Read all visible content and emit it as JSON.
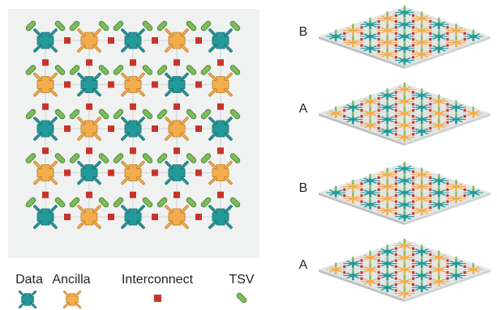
{
  "colors": {
    "data": "#23999a",
    "data_stroke": "#17696b",
    "ancilla": "#f4ad4d",
    "ancilla_stroke": "#b87a23",
    "interconnect": "#c8342b",
    "tsv": "#7cbd59",
    "tsv_stroke": "#3f7a2c",
    "panel": "#f0f2f2",
    "layer_top": "#e3e5e5",
    "layer_side": "#bdc0c0"
  },
  "grid": {
    "rows": 5,
    "cols": 5,
    "pattern": [
      [
        "data",
        "ancilla",
        "data",
        "ancilla",
        "data"
      ],
      [
        "ancilla",
        "data",
        "ancilla",
        "data",
        "ancilla"
      ],
      [
        "data",
        "ancilla",
        "data",
        "ancilla",
        "data"
      ],
      [
        "ancilla",
        "data",
        "ancilla",
        "data",
        "ancilla"
      ],
      [
        "data",
        "ancilla",
        "data",
        "ancilla",
        "data"
      ]
    ]
  },
  "legend": {
    "data": "Data",
    "ancilla": "Ancilla",
    "interconnect": "Interconnect",
    "tsv": "TSV",
    "data_icon": "data-qubit-icon",
    "ancilla_icon": "ancilla-qubit-icon",
    "interconnect_icon": "interconnect-square-icon",
    "tsv_icon": "tsv-pill-icon"
  },
  "layers": [
    {
      "label": "B"
    },
    {
      "label": "A"
    },
    {
      "label": "B"
    },
    {
      "label": "A"
    }
  ]
}
